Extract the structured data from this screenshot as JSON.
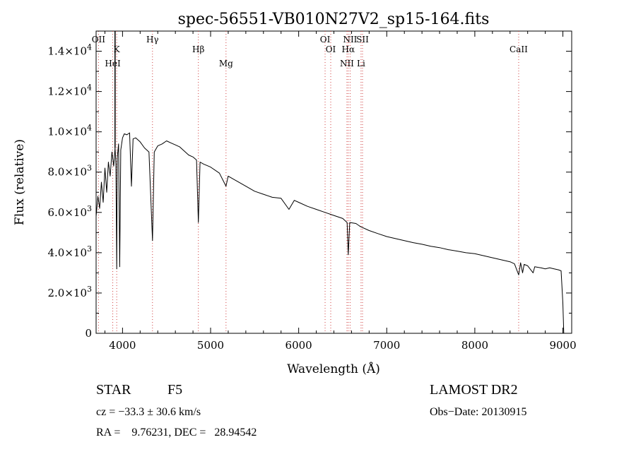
{
  "chart_data": {
    "type": "line",
    "title": "spec-56551-VB010N27V2_sp15-164.fits",
    "xlabel": "Wavelength (Å)",
    "ylabel": "Flux (relative)",
    "xlim": [
      3700,
      9100
    ],
    "ylim": [
      0,
      15000
    ],
    "x_ticks": [
      4000,
      5000,
      6000,
      7000,
      8000,
      9000
    ],
    "y_ticks": [
      {
        "value": 0,
        "mantissa": "0",
        "exp": ""
      },
      {
        "value": 2000,
        "mantissa": "2.0×10",
        "exp": "3"
      },
      {
        "value": 4000,
        "mantissa": "4.0×10",
        "exp": "3"
      },
      {
        "value": 6000,
        "mantissa": "6.0×10",
        "exp": "3"
      },
      {
        "value": 8000,
        "mantissa": "8.0×10",
        "exp": "3"
      },
      {
        "value": 10000,
        "mantissa": "1.0×10",
        "exp": "4"
      },
      {
        "value": 12000,
        "mantissa": "1.2×10",
        "exp": "4"
      },
      {
        "value": 14000,
        "mantissa": "1.4×10",
        "exp": "4"
      }
    ],
    "grid": false,
    "spectral_lines": [
      {
        "label": "OII",
        "wavelength": 3727
      },
      {
        "label": "K",
        "wavelength": 3934
      },
      {
        "label": "HeI",
        "wavelength": 3889
      },
      {
        "label": "Hγ",
        "wavelength": 4340
      },
      {
        "label": "Hβ",
        "wavelength": 4861
      },
      {
        "label": "Mg",
        "wavelength": 5175
      },
      {
        "label": "OI",
        "wavelength": 6300
      },
      {
        "label": "OI",
        "wavelength": 6364
      },
      {
        "label": "NII",
        "wavelength": 6548
      },
      {
        "label": "NII",
        "wavelength": 6584
      },
      {
        "label": "Hα",
        "wavelength": 6563
      },
      {
        "label": "Li",
        "wavelength": 6708
      },
      {
        "label": "SII",
        "wavelength": 6725
      },
      {
        "label": "CaII",
        "wavelength": 8498
      }
    ],
    "series": [
      {
        "x": [
          3700,
          3720,
          3740,
          3760,
          3780,
          3800,
          3820,
          3840,
          3860,
          3880,
          3900,
          3915,
          3925,
          3934,
          3940,
          3955,
          3968,
          3980,
          4000,
          4020,
          4050,
          4080,
          4101,
          4120,
          4150,
          4200,
          4250,
          4300,
          4340,
          4360,
          4400,
          4450,
          4500,
          4550,
          4600,
          4650,
          4700,
          4750,
          4800,
          4840,
          4861,
          4880,
          4920,
          5000,
          5100,
          5175,
          5200,
          5300,
          5400,
          5500,
          5600,
          5700,
          5800,
          5890,
          5950,
          6000,
          6100,
          6200,
          6300,
          6400,
          6500,
          6550,
          6563,
          6580,
          6650,
          6700,
          6800,
          6900,
          7000,
          7100,
          7200,
          7300,
          7400,
          7500,
          7600,
          7700,
          7800,
          7900,
          8000,
          8100,
          8200,
          8300,
          8400,
          8450,
          8498,
          8520,
          8542,
          8560,
          8600,
          8662,
          8680,
          8750,
          8800,
          8850,
          8900,
          8950,
          8980,
          9000,
          9010
        ],
        "y": [
          5800,
          6800,
          6200,
          7500,
          6500,
          8200,
          7000,
          8500,
          7800,
          9000,
          8300,
          9200,
          8400,
          3200,
          8700,
          9400,
          3300,
          9100,
          9700,
          9900,
          9850,
          9950,
          7300,
          9650,
          9700,
          9500,
          9200,
          9000,
          4600,
          9000,
          9300,
          9400,
          9550,
          9450,
          9350,
          9250,
          9050,
          8850,
          8750,
          8600,
          5500,
          8500,
          8400,
          8250,
          7950,
          7300,
          7800,
          7550,
          7300,
          7050,
          6900,
          6750,
          6700,
          6150,
          6600,
          6500,
          6300,
          6150,
          6000,
          5850,
          5700,
          5500,
          3900,
          5500,
          5450,
          5300,
          5100,
          4950,
          4800,
          4700,
          4600,
          4500,
          4420,
          4320,
          4250,
          4150,
          4080,
          4000,
          3950,
          3850,
          3750,
          3650,
          3550,
          3450,
          2900,
          3500,
          3000,
          3420,
          3350,
          3000,
          3300,
          3250,
          3200,
          3250,
          3200,
          3150,
          3100,
          1500,
          0
        ]
      }
    ]
  },
  "info": {
    "object_class": "STAR",
    "subclass": "F5",
    "survey": "LAMOST DR2",
    "cz": "cz = −33.3 ± 30.6 km/s",
    "obs_date": "Obs−Date: 20130915",
    "coords": "RA =    9.76231, DEC =   28.94542"
  }
}
